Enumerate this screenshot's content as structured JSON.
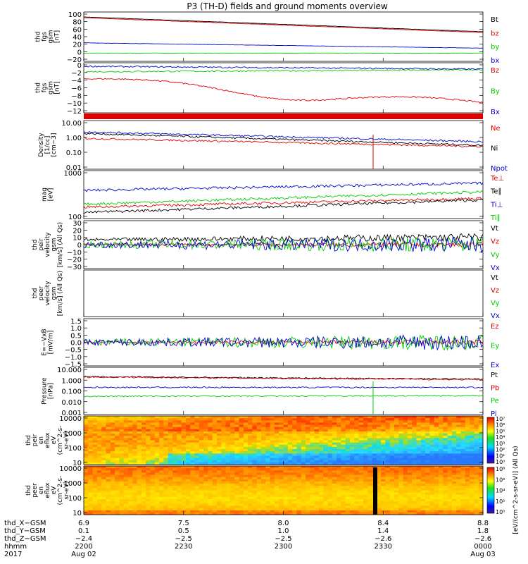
{
  "title": "P3 (TH-D) fields and ground moments overview",
  "colors": {
    "black": "#000000",
    "red": "#e00000",
    "green": "#00cc00",
    "blue": "#0000cc"
  },
  "chart_data": [
    {
      "type": "line",
      "id": "fgs_btot",
      "ylabel": [
        "thd",
        "fgs",
        "gsm",
        "[nT]"
      ],
      "yticks": [
        "100",
        "80",
        "60",
        "40",
        "20",
        "0",
        "−20"
      ],
      "ylim": [
        -20,
        100
      ],
      "series": [
        {
          "name": "Bt",
          "color": "black",
          "start": 88,
          "end": 52
        },
        {
          "name": "bz",
          "color": "red",
          "start": 86,
          "end": 50
        },
        {
          "name": "by",
          "color": "green",
          "start": 0,
          "end": 0
        },
        {
          "name": "bx",
          "color": "blue",
          "start": 25,
          "end": 12
        }
      ]
    },
    {
      "type": "line",
      "id": "fgs_comp",
      "ylabel": [
        "thd",
        "fgs",
        "gsm",
        "[nT]"
      ],
      "yticks": [
        "0",
        "−2",
        "−4",
        "−6",
        "−8",
        "−10",
        "−12"
      ],
      "ylim": [
        -13,
        1
      ],
      "series": [
        {
          "name": "Bz",
          "color": "red",
          "start": -3.5,
          "end": -10.5
        },
        {
          "name": "By",
          "color": "green",
          "start": -1.5,
          "end": -1.0
        },
        {
          "name": "Bx",
          "color": "blue",
          "start": 0.0,
          "end": -0.8
        }
      ]
    },
    {
      "type": "line",
      "id": "density",
      "ylabel": [
        "Density",
        "[1/cc]",
        "[cm−3]"
      ],
      "yscale": "log",
      "yticks": [
        "10.00",
        "1.00",
        "0.10",
        "0.01"
      ],
      "ylim": [
        0.01,
        10
      ],
      "series": [
        {
          "name": "Ne",
          "color": "red",
          "start": 0.8,
          "end": 0.25
        },
        {
          "name": "Ni",
          "color": "black",
          "start": 1.6,
          "end": 0.3
        },
        {
          "name": "Npot",
          "color": "blue",
          "start": 2.0,
          "end": 0.5
        }
      ]
    },
    {
      "type": "line",
      "id": "temperature",
      "ylabel": [
        "mag",
        "[eV]"
      ],
      "yscale": "log",
      "yticks": [
        "1000",
        "100"
      ],
      "ylim": [
        100,
        10000
      ],
      "series": [
        {
          "name": "Te⊥",
          "color": "red",
          "start": 300,
          "end": 700
        },
        {
          "name": "Te∥",
          "color": "black",
          "start": 180,
          "end": 600
        },
        {
          "name": "Ti⊥",
          "color": "blue",
          "start": 1500,
          "end": 3000
        },
        {
          "name": "Ti∥",
          "color": "green",
          "start": 400,
          "end": 1300
        }
      ]
    },
    {
      "type": "line",
      "id": "peir_velocity",
      "ylabel": [
        "thd",
        "peir",
        "velocity",
        "gsm",
        "[km/s] (All Qs)"
      ],
      "yticks": [
        "30",
        "20",
        "10",
        "0",
        "−10",
        "−20",
        "−30"
      ],
      "ylim": [
        -30,
        30
      ],
      "series": [
        {
          "name": "Vt",
          "color": "black"
        },
        {
          "name": "Vz",
          "color": "red"
        },
        {
          "name": "Vy",
          "color": "green"
        },
        {
          "name": "Vx",
          "color": "blue"
        }
      ]
    },
    {
      "type": "line",
      "id": "peer_velocity",
      "ylabel": [
        "thd",
        "peer",
        "velocity",
        "gsm",
        "[km/s] (All Qs)"
      ],
      "yticks": [],
      "series": [
        {
          "name": "Vt",
          "color": "black"
        },
        {
          "name": "Vz",
          "color": "red"
        },
        {
          "name": "Vy",
          "color": "green"
        },
        {
          "name": "Vx",
          "color": "blue"
        }
      ]
    },
    {
      "type": "line",
      "id": "exb",
      "ylabel": [
        "E=−VxB",
        "[mV/m]"
      ],
      "yticks": [
        "1.5",
        "1.0",
        "0.5",
        "0.0",
        "−0.5",
        "−1.0",
        "−1.5"
      ],
      "ylim": [
        -1.5,
        1.5
      ],
      "series": [
        {
          "name": "Ez",
          "color": "red"
        },
        {
          "name": "Ey",
          "color": "green"
        },
        {
          "name": "Ex",
          "color": "blue"
        }
      ]
    },
    {
      "type": "line",
      "id": "pressure",
      "ylabel": [
        "Pressure",
        "[nPa]"
      ],
      "yscale": "log",
      "yticks": [
        "10.000",
        "1.000",
        "0.100",
        "0.010",
        "0.001"
      ],
      "ylim": [
        0.001,
        10
      ],
      "series": [
        {
          "name": "Pt",
          "color": "black",
          "start": 1.6,
          "end": 1.0
        },
        {
          "name": "Pb",
          "color": "red",
          "start": 1.5,
          "end": 0.9
        },
        {
          "name": "Pe",
          "color": "green",
          "start": 0.035,
          "end": 0.04
        },
        {
          "name": "Pi",
          "color": "blue",
          "start": 0.2,
          "end": 0.2
        }
      ]
    },
    {
      "type": "heatmap",
      "id": "peir_eflux",
      "ylabel": [
        "thd",
        "peir",
        "en",
        "eflux",
        "eV",
        "(cm^2-s-",
        "sr-eV)"
      ],
      "yticks": [
        "10000",
        "1000",
        "100",
        "10"
      ],
      "colorbar_ticks": [
        "10⁷",
        "10⁶",
        "10⁵",
        "10⁴",
        "10³",
        "10²",
        "10¹",
        "10⁰"
      ]
    },
    {
      "type": "heatmap",
      "id": "peer_eflux",
      "ylabel": [
        "thd",
        "peer",
        "en",
        "eflux",
        "eV",
        "(cm^2-s-",
        "sr-eV)"
      ],
      "yticks": [
        "10000",
        "1000",
        "100",
        "10"
      ],
      "colorbar_ticks": [
        "10⁸",
        "10⁶",
        "10⁴",
        "10²",
        "10⁰"
      ]
    }
  ],
  "colorbar_label": "[eV/(cm^2-s-sr-eV)] (All Qs)",
  "x_axis": {
    "row_labels": [
      "thd_X−GSM",
      "thd_Y−GSM",
      "thd_Z−GSM",
      "hhmm",
      "2017"
    ],
    "ticks": [
      {
        "values": [
          "6.9",
          "0.1",
          "−2.4",
          "2200",
          "Aug 02"
        ]
      },
      {
        "values": [
          "7.5",
          "0.5",
          "−2.5",
          "2230",
          ""
        ]
      },
      {
        "values": [
          "8.0",
          "1.0",
          "−2.5",
          "2300",
          ""
        ]
      },
      {
        "values": [
          "8.4",
          "1.4",
          "−2.6",
          "2330",
          ""
        ]
      },
      {
        "values": [
          "8.8",
          "1.8",
          "−2.6",
          "0000",
          "Aug 03"
        ]
      }
    ]
  }
}
